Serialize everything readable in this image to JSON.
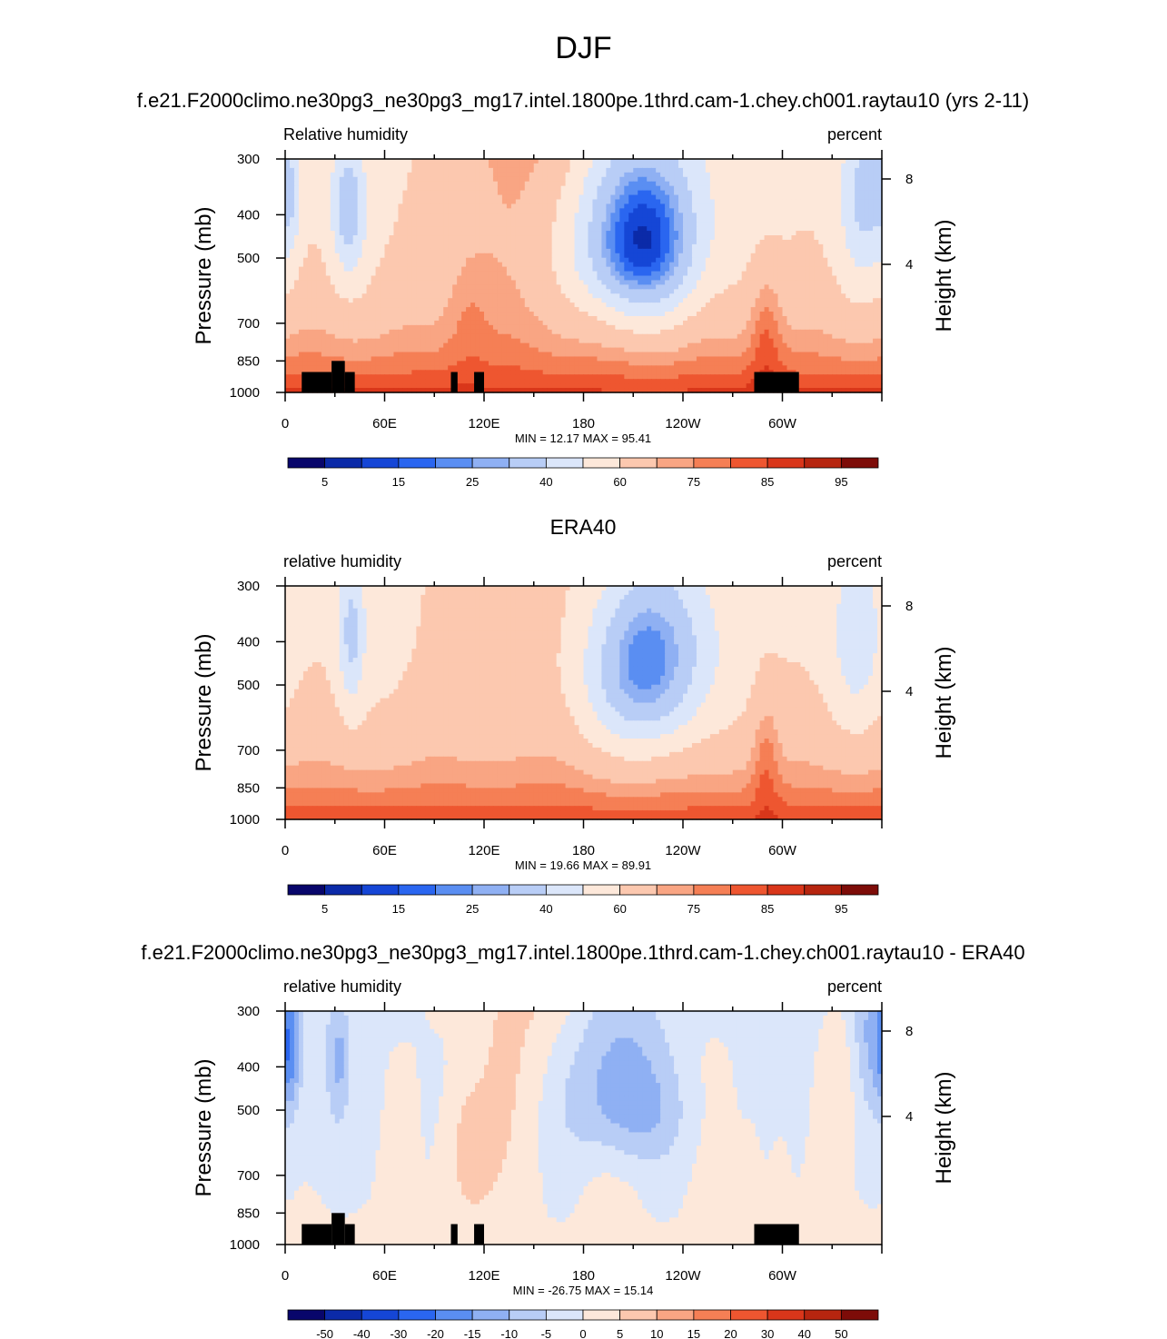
{
  "figure": {
    "title": "DJF"
  },
  "chart_data": [
    {
      "type": "heatmap",
      "title": "f.e21.F2000climo.ne30pg3_ne30pg3_mg17.intel.1800pe.1thrd.cam-1.chey.ch001.raytau10 (yrs 2-11)",
      "left_string": "Relative humidity",
      "right_string": "percent",
      "ylabel": "Pressure (mb)",
      "ylabel_right": "Height (km)",
      "x_ticks": [
        "0",
        "60E",
        "120E",
        "180",
        "120W",
        "60W"
      ],
      "y_ticks": [
        "300",
        "400",
        "500",
        "700",
        "850",
        "1000"
      ],
      "y_ticks_right": [
        "8",
        "4"
      ],
      "stats": "MIN =  12.17  MAX =  95.41",
      "colorbar_labels": [
        "5",
        "15",
        "25",
        "40",
        "60",
        "75",
        "85",
        "95"
      ],
      "colormap": [
        "#08066b",
        "#0b2aa8",
        "#1546d6",
        "#2a66f0",
        "#5a8ef2",
        "#8fb0f3",
        "#b8cdf6",
        "#dbe6fa",
        "#fde8da",
        "#fcc8af",
        "#f9a583",
        "#f57f55",
        "#ee5630",
        "#d9361a",
        "#b6250f",
        "#7d0c08"
      ],
      "min": 12.17,
      "max": 95.41,
      "mode": "abs",
      "blank_terrain": true
    },
    {
      "type": "heatmap",
      "title": "ERA40",
      "left_string": "relative humidity",
      "right_string": "percent",
      "ylabel": "Pressure (mb)",
      "ylabel_right": "Height (km)",
      "x_ticks": [
        "0",
        "60E",
        "120E",
        "180",
        "120W",
        "60W"
      ],
      "y_ticks": [
        "300",
        "400",
        "500",
        "700",
        "850",
        "1000"
      ],
      "y_ticks_right": [
        "8",
        "4"
      ],
      "stats": "MIN =  19.66  MAX =  89.91",
      "colorbar_labels": [
        "5",
        "15",
        "25",
        "40",
        "60",
        "75",
        "85",
        "95"
      ],
      "colormap": [
        "#08066b",
        "#0b2aa8",
        "#1546d6",
        "#2a66f0",
        "#5a8ef2",
        "#8fb0f3",
        "#b8cdf6",
        "#dbe6fa",
        "#fde8da",
        "#fcc8af",
        "#f9a583",
        "#f57f55",
        "#ee5630",
        "#d9361a",
        "#b6250f",
        "#7d0c08"
      ],
      "min": 19.66,
      "max": 89.91,
      "mode": "abs",
      "blank_terrain": false
    },
    {
      "type": "heatmap",
      "title": "f.e21.F2000climo.ne30pg3_ne30pg3_mg17.intel.1800pe.1thrd.cam-1.chey.ch001.raytau10 - ERA40",
      "left_string": "relative humidity",
      "right_string": "percent",
      "ylabel": "Pressure (mb)",
      "ylabel_right": "Height (km)",
      "x_ticks": [
        "0",
        "60E",
        "120E",
        "180",
        "120W",
        "60W"
      ],
      "y_ticks": [
        "300",
        "400",
        "500",
        "700",
        "850",
        "1000"
      ],
      "y_ticks_right": [
        "8",
        "4"
      ],
      "stats": "MIN = -26.75  MAX =  15.14",
      "colorbar_labels": [
        "-50",
        "-40",
        "-30",
        "-20",
        "-15",
        "-10",
        "-5",
        "0",
        "5",
        "10",
        "15",
        "20",
        "30",
        "40",
        "50"
      ],
      "colormap": [
        "#08066b",
        "#0b2aa8",
        "#1546d6",
        "#2a66f0",
        "#5a8ef2",
        "#8fb0f3",
        "#b8cdf6",
        "#dbe6fa",
        "#fde8da",
        "#fcc8af",
        "#f9a583",
        "#f57f55",
        "#ee5630",
        "#d9361a",
        "#b6250f",
        "#7d0c08"
      ],
      "min": -26.75,
      "max": 15.14,
      "mode": "diff",
      "blank_terrain": true
    }
  ]
}
